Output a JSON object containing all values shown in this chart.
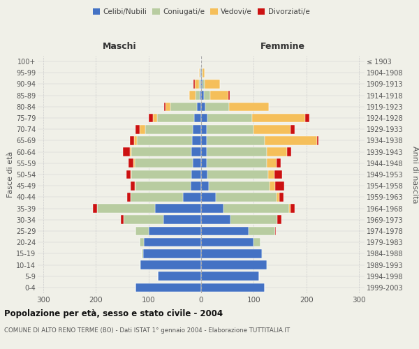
{
  "age_groups": [
    "0-4",
    "5-9",
    "10-14",
    "15-19",
    "20-24",
    "25-29",
    "30-34",
    "35-39",
    "40-44",
    "45-49",
    "50-54",
    "55-59",
    "60-64",
    "65-69",
    "70-74",
    "75-79",
    "80-84",
    "85-89",
    "90-94",
    "95-99",
    "100+"
  ],
  "birth_years": [
    "1999-2003",
    "1994-1998",
    "1989-1993",
    "1984-1988",
    "1979-1983",
    "1974-1978",
    "1969-1973",
    "1964-1968",
    "1959-1963",
    "1954-1958",
    "1949-1953",
    "1944-1948",
    "1939-1943",
    "1934-1938",
    "1929-1933",
    "1924-1928",
    "1919-1923",
    "1914-1918",
    "1909-1913",
    "1904-1908",
    "≤ 1903"
  ],
  "colors": {
    "celibi": "#4472c4",
    "coniugati": "#b8cca0",
    "vedovi": "#f5bf5a",
    "divorziati": "#cc1111"
  },
  "maschi": {
    "celibi": [
      125,
      82,
      115,
      110,
      108,
      100,
      72,
      87,
      34,
      20,
      18,
      16,
      18,
      17,
      16,
      13,
      8,
      3,
      1,
      1,
      0
    ],
    "coniugati": [
      0,
      0,
      1,
      2,
      8,
      25,
      75,
      110,
      100,
      105,
      115,
      110,
      115,
      105,
      90,
      70,
      50,
      8,
      3,
      1,
      0
    ],
    "vedovi": [
      0,
      0,
      0,
      0,
      0,
      0,
      0,
      0,
      0,
      1,
      1,
      2,
      2,
      5,
      10,
      8,
      10,
      12,
      8,
      2,
      0
    ],
    "divorziati": [
      0,
      0,
      0,
      0,
      0,
      0,
      6,
      8,
      6,
      8,
      8,
      10,
      14,
      8,
      8,
      8,
      2,
      0,
      2,
      0,
      0
    ]
  },
  "femmine": {
    "celibi": [
      120,
      110,
      125,
      115,
      100,
      90,
      55,
      42,
      28,
      15,
      12,
      10,
      10,
      10,
      10,
      12,
      8,
      5,
      2,
      1,
      0
    ],
    "coniugati": [
      0,
      0,
      1,
      2,
      12,
      50,
      90,
      125,
      115,
      115,
      115,
      115,
      115,
      110,
      90,
      85,
      45,
      12,
      4,
      1,
      0
    ],
    "vedovi": [
      0,
      0,
      0,
      0,
      0,
      0,
      0,
      2,
      5,
      10,
      12,
      18,
      38,
      100,
      70,
      100,
      75,
      35,
      30,
      4,
      0
    ],
    "divorziati": [
      0,
      0,
      0,
      0,
      0,
      2,
      8,
      8,
      8,
      18,
      15,
      8,
      8,
      2,
      8,
      8,
      0,
      2,
      0,
      0,
      0
    ]
  },
  "xlim": 310,
  "xticks": [
    -300,
    -200,
    -100,
    0,
    100,
    200,
    300
  ],
  "title": "Popolazione per età, sesso e stato civile - 2004",
  "subtitle": "COMUNE DI ALTO RENO TERME (BO) - Dati ISTAT 1° gennaio 2004 - Elaborazione TUTTITALIA.IT",
  "ylabel_left": "Fasce di età",
  "ylabel_right": "Anni di nascita",
  "label_maschi": "Maschi",
  "label_femmine": "Femmine",
  "legend_labels": [
    "Celibi/Nubili",
    "Coniugati/e",
    "Vedovi/e",
    "Divorziati/e"
  ],
  "bg_color": "#f0f0e8",
  "grid_color": "#cccccc",
  "bar_edge_color": "white",
  "center_line_color": "#aaaaaa"
}
